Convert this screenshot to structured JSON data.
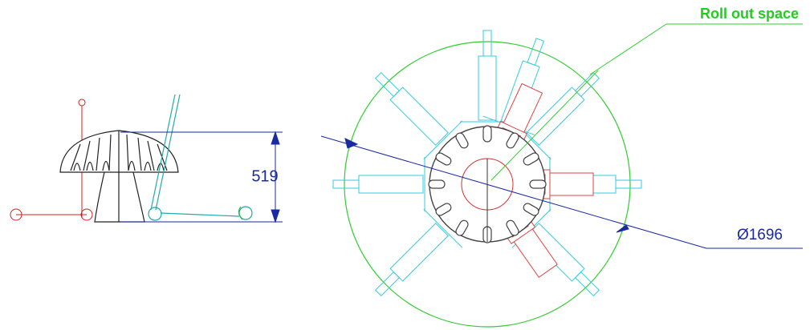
{
  "labels": {
    "roll_out": "Roll out space",
    "height": "519",
    "diameter": "Ø1696"
  }
}
